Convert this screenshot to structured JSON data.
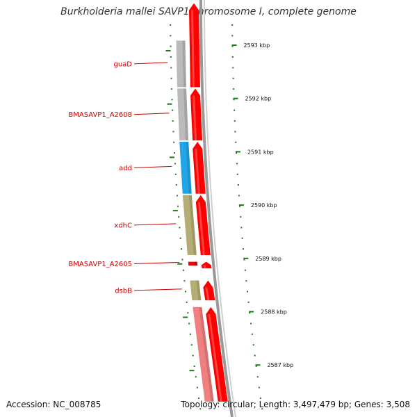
{
  "title": "Burkholderia mallei SAVP1 chromosome I, complete genome",
  "footer": {
    "accession": "Accession: NC_008785",
    "topology": "Topology: circular; Length: 3,497,479 bp; Genes: 3,508"
  },
  "genes": [
    {
      "name": "guaD",
      "start": 2593.1,
      "end": 2592.2,
      "color": "#bbbbbb",
      "arrow": false
    },
    {
      "name": "BMASAVP1_A2608",
      "start": 2592.2,
      "end": 2591.2,
      "color": "#bbbbbb",
      "arrow": false
    },
    {
      "name": "add",
      "start": 2591.2,
      "end": 2590.2,
      "color": "#22a5e6",
      "arrow": false
    },
    {
      "name": "xdhC",
      "start": 2590.2,
      "end": 2589.05,
      "color": "#b5ad76",
      "arrow": false
    },
    {
      "name": "BMASAVP1_A2605",
      "start": 2588.95,
      "end": 2588.85,
      "color": "#ff0000",
      "arrow": false
    },
    {
      "name": "dsbB",
      "start": 2588.6,
      "end": 2588.2,
      "color": "#b5ad76",
      "arrow": false
    },
    {
      "name": "",
      "start": 2588.1,
      "end": 2586.3,
      "color": "#f08080",
      "arrow": false
    }
  ],
  "cds": [
    {
      "start": 2593.8,
      "end": 2592.2
    },
    {
      "start": 2592.2,
      "end": 2591.2
    },
    {
      "start": 2591.2,
      "end": 2590.2
    },
    {
      "start": 2590.2,
      "end": 2589.05
    },
    {
      "start": 2588.95,
      "end": 2588.8
    },
    {
      "start": 2588.6,
      "end": 2588.2
    },
    {
      "start": 2588.1,
      "end": 2586.3
    }
  ],
  "ticks": [
    {
      "kbp": 2593,
      "label": "2593 kbp"
    },
    {
      "kbp": 2592,
      "label": "2592 kbp"
    },
    {
      "kbp": 2591,
      "label": "2591 kbp"
    },
    {
      "kbp": 2590,
      "label": "2590 kbp"
    },
    {
      "kbp": 2589,
      "label": "2589 kbp"
    },
    {
      "kbp": 2588,
      "label": "2588 kbp"
    },
    {
      "kbp": 2587,
      "label": "2587 kbp"
    }
  ],
  "colors": {
    "cds": "#ff0000",
    "backbone": "#999999",
    "tick": "#1a7a1a",
    "label": "#cc0000"
  }
}
